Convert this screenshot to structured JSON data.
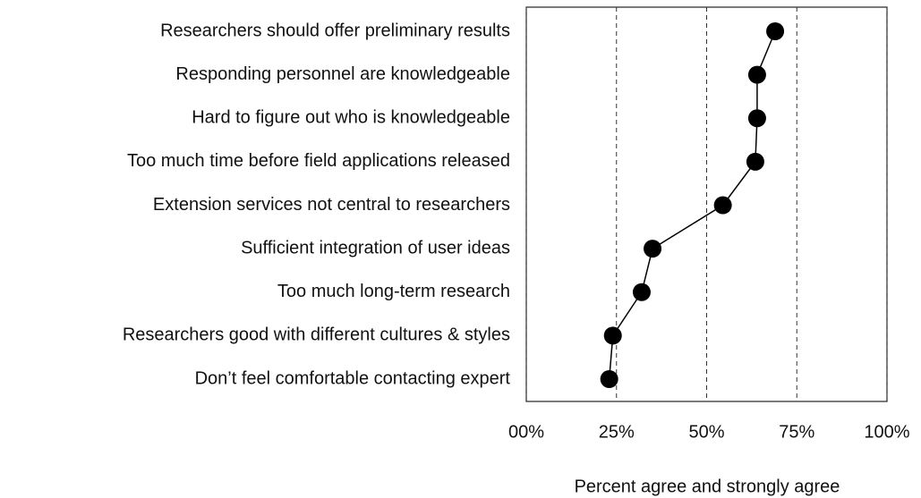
{
  "chart_data": {
    "type": "dot",
    "orientation": "horizontal",
    "categories": [
      "Researchers should offer preliminary results",
      "Responding personnel are knowledgeable",
      "Hard to figure out who is knowledgeable",
      "Too much time before field applications released",
      "Extension services not central to researchers",
      "Sufficient integration of user ideas",
      "Too much long-term research",
      "Researchers good with different cultures & styles",
      "Don’t feel comfortable contacting expert"
    ],
    "values": [
      69,
      64,
      64,
      63.5,
      54.5,
      35,
      32,
      24,
      23
    ],
    "color": "#000000",
    "xlim": [
      0,
      100
    ],
    "xticks": [
      {
        "value": 0,
        "label": "00%"
      },
      {
        "value": 25,
        "label": "25%"
      },
      {
        "value": 50,
        "label": "50%"
      },
      {
        "value": 75,
        "label": "75%"
      },
      {
        "value": 100,
        "label": "100%"
      }
    ],
    "grid": true,
    "x_label": "Percent agree and strongly agree"
  }
}
